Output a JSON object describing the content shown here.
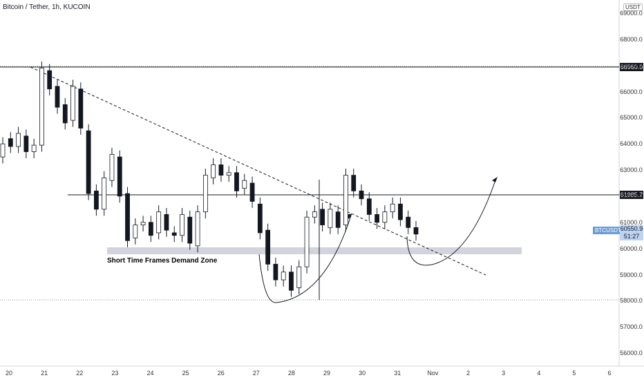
{
  "header": {
    "title": "Bitcoin / Tether, 1h, KUCOIN",
    "currency": "USDT"
  },
  "annotations": {
    "zone_label": "Short Time Frames Demand Zone"
  },
  "price_tags": {
    "level_high": "66960.0",
    "level_mid": "61985.7",
    "symbol": "BTCUSDT",
    "current_price": "60550.9",
    "countdown": "51:27"
  },
  "colors": {
    "bull": "#26a69a",
    "bear": "#ef5350",
    "candle": "#131722",
    "zone": "#d1d4dc",
    "level": "#131722",
    "tag_bg": "#131722",
    "current_tag": "#bcd4f2",
    "symbol_tag": "#6c9bd2"
  },
  "chart_data": {
    "type": "candlestick",
    "title": "Bitcoin / Tether, 1h, KUCOIN",
    "y_unit": "USDT",
    "ylim": [
      55500,
      69500
    ],
    "y_ticks": [
      "69000.0",
      "68000.0",
      "67000.0",
      "66000.0",
      "65000.0",
      "64000.0",
      "63000.0",
      "62000.0",
      "61000.0",
      "60000.0",
      "59000.0",
      "58000.0",
      "57000.0",
      "56000.0"
    ],
    "x_ticks": [
      "20",
      "21",
      "22",
      "23",
      "24",
      "25",
      "26",
      "27",
      "28",
      "29",
      "30",
      "31",
      "Nov",
      "2",
      "3",
      "4",
      "5",
      "6"
    ],
    "series": [
      {
        "values": [
          [
            63500,
            64000
          ],
          [
            64200,
            63900
          ],
          [
            63900,
            64400
          ],
          [
            64300,
            63700
          ],
          [
            63700,
            63950
          ],
          [
            63950,
            66900
          ],
          [
            66800,
            66100
          ],
          [
            66200,
            65400
          ],
          [
            65500,
            64800
          ],
          [
            64900,
            66200
          ],
          [
            66100,
            64600
          ],
          [
            64500,
            62100
          ],
          [
            62200,
            61500
          ],
          [
            61500,
            62700
          ],
          [
            62600,
            63600
          ],
          [
            63500,
            62000
          ],
          [
            62100,
            60300
          ],
          [
            60400,
            60900
          ],
          [
            60900,
            61000
          ],
          [
            61000,
            60500
          ],
          [
            60600,
            61400
          ],
          [
            61300,
            60700
          ],
          [
            60600,
            60500
          ],
          [
            60500,
            61300
          ],
          [
            61200,
            60200
          ],
          [
            60100,
            61400
          ],
          [
            61400,
            62800
          ],
          [
            62700,
            63200
          ],
          [
            63200,
            62800
          ],
          [
            62800,
            62900
          ],
          [
            62900,
            62200
          ],
          [
            62300,
            62600
          ],
          [
            62500,
            61800
          ],
          [
            61700,
            60600
          ],
          [
            60700,
            59400
          ],
          [
            59400,
            58800
          ],
          [
            58800,
            59100
          ],
          [
            59100,
            58400
          ],
          [
            58500,
            59300
          ],
          [
            59300,
            61200
          ],
          [
            61200,
            61400
          ],
          [
            61500,
            60900
          ],
          [
            60800,
            61500
          ],
          [
            61400,
            60800
          ],
          [
            60900,
            62800
          ],
          [
            62800,
            62200
          ],
          [
            62200,
            61900
          ],
          [
            61900,
            61300
          ],
          [
            61300,
            61000
          ],
          [
            61000,
            61400
          ],
          [
            61400,
            61700
          ],
          [
            61700,
            61100
          ],
          [
            61200,
            60800
          ],
          [
            60800,
            60550
          ]
        ]
      }
    ],
    "horizontal_levels": [
      66960.0,
      61985.7
    ],
    "demand_zone": [
      59650,
      59900
    ],
    "trendline": [
      [
        20.5,
        67000
      ],
      [
        33.5,
        58800
      ]
    ],
    "current_price": 60550.9
  }
}
